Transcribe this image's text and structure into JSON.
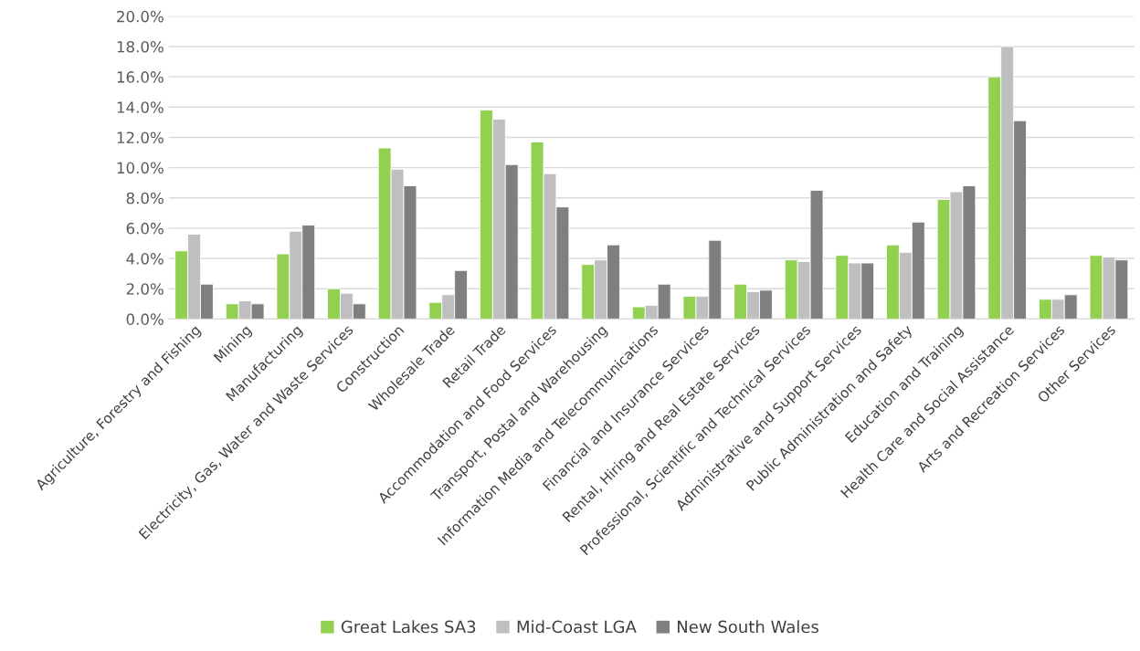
{
  "chart_data": {
    "type": "bar",
    "categories": [
      "Agriculture, Forestry and Fishing",
      "Mining",
      "Manufacturing",
      "Electricity, Gas, Water and Waste Services",
      "Construction",
      "Wholesale Trade",
      "Retail Trade",
      "Accommodation and Food Services",
      "Transport, Postal and Warehousing",
      "Information Media and Telecommunications",
      "Financial and Insurance Services",
      "Rental, Hiring and Real Estate Services",
      "Professional, Scientific and Technical Services",
      "Administrative and Support Services",
      "Public Administration and Safety",
      "Education and Training",
      "Health Care and Social Assistance",
      "Arts and Recreation Services",
      "Other Services"
    ],
    "series": [
      {
        "name": "Great Lakes SA3",
        "color": "#92d050",
        "values": [
          4.5,
          1.0,
          4.3,
          2.0,
          11.3,
          1.1,
          13.8,
          11.7,
          3.6,
          0.8,
          1.5,
          2.3,
          3.9,
          4.2,
          4.9,
          7.9,
          16.0,
          1.3,
          4.2
        ]
      },
      {
        "name": "Mid-Coast LGA",
        "color": "#bfbfbf",
        "values": [
          5.6,
          1.2,
          5.8,
          1.7,
          9.9,
          1.6,
          13.2,
          9.6,
          3.9,
          0.9,
          1.5,
          1.8,
          3.8,
          3.7,
          4.4,
          8.4,
          18.0,
          1.3,
          4.1
        ]
      },
      {
        "name": "New South Wales",
        "color": "#7f7f7f",
        "values": [
          2.3,
          1.0,
          6.2,
          1.0,
          8.8,
          3.2,
          10.2,
          7.4,
          4.9,
          2.3,
          5.2,
          1.9,
          8.5,
          3.7,
          6.4,
          8.8,
          13.1,
          1.6,
          3.9
        ]
      }
    ],
    "ylim": [
      0,
      20
    ],
    "yticks": [
      {
        "value": 0,
        "label": "0.0%"
      },
      {
        "value": 2,
        "label": "2.0%"
      },
      {
        "value": 4,
        "label": "4.0%"
      },
      {
        "value": 6,
        "label": "6.0%"
      },
      {
        "value": 8,
        "label": "8.0%"
      },
      {
        "value": 10,
        "label": "10.0%"
      },
      {
        "value": 12,
        "label": "12.0%"
      },
      {
        "value": 14,
        "label": "14.0%"
      },
      {
        "value": 16,
        "label": "16.0%"
      },
      {
        "value": 18,
        "label": "18.0%"
      },
      {
        "value": 20,
        "label": "20.0%"
      }
    ],
    "grid": "y",
    "legend": "bottom"
  }
}
